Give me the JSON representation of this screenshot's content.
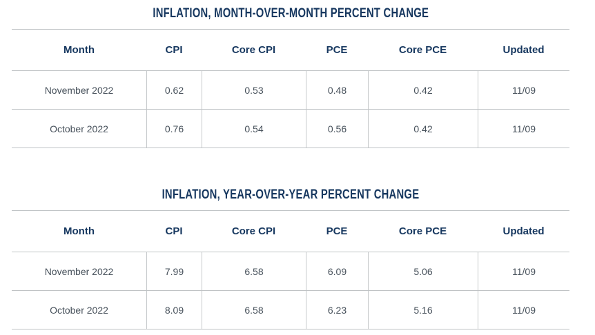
{
  "colors": {
    "heading_text": "#16375f",
    "body_text": "#46505a",
    "grid_line": "#bfc3c5",
    "background": "#ffffff"
  },
  "chart_data": [
    {
      "type": "table",
      "title": "INFLATION, MONTH-OVER-MONTH PERCENT CHANGE",
      "columns": [
        "Month",
        "CPI",
        "Core CPI",
        "PCE",
        "Core PCE",
        "Updated"
      ],
      "rows": [
        [
          "November 2022",
          "0.62",
          "0.53",
          "0.48",
          "0.42",
          "11/09"
        ],
        [
          "October 2022",
          "0.76",
          "0.54",
          "0.56",
          "0.42",
          "11/09"
        ]
      ]
    },
    {
      "type": "table",
      "title": "INFLATION, YEAR-OVER-YEAR PERCENT CHANGE",
      "columns": [
        "Month",
        "CPI",
        "Core CPI",
        "PCE",
        "Core PCE",
        "Updated"
      ],
      "rows": [
        [
          "November 2022",
          "7.99",
          "6.58",
          "6.09",
          "5.06",
          "11/09"
        ],
        [
          "October 2022",
          "8.09",
          "6.58",
          "6.23",
          "5.16",
          "11/09"
        ]
      ]
    }
  ]
}
